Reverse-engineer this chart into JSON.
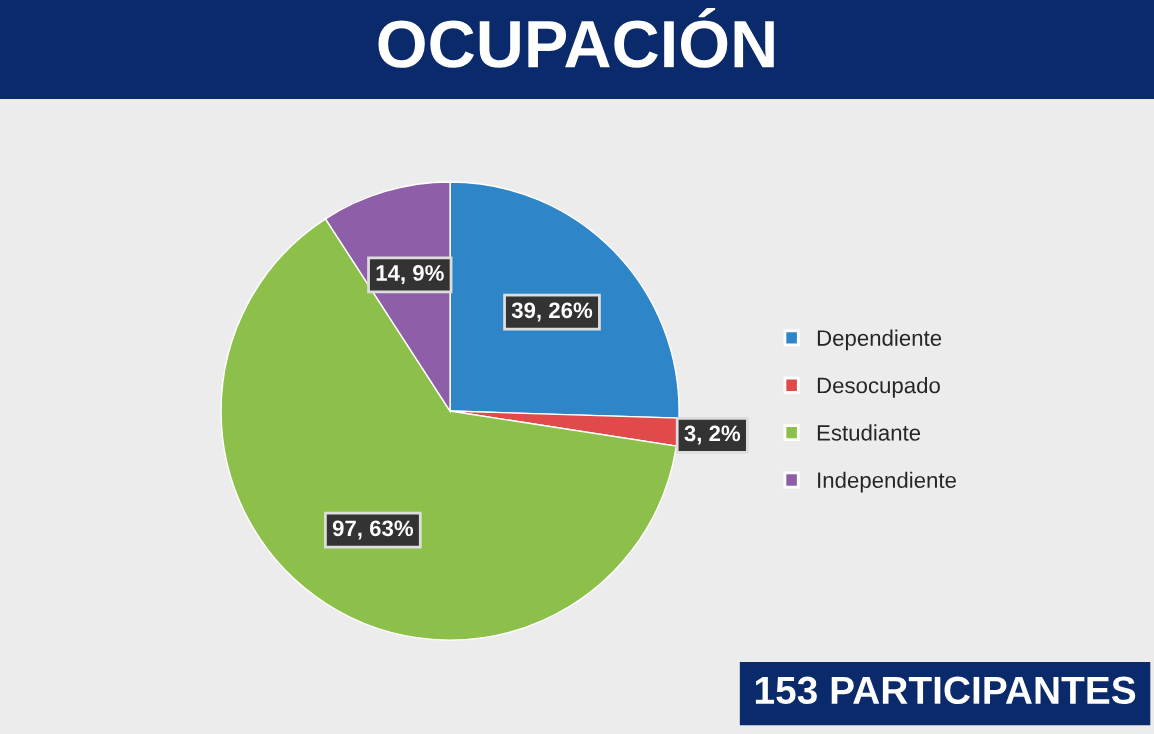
{
  "chart_data": {
    "type": "pie",
    "title": "OCUPACIÓN",
    "categories": [
      "Dependiente",
      "Desocupado",
      "Estudiante",
      "Independiente"
    ],
    "values": [
      39,
      3,
      97,
      14
    ],
    "colors": [
      "#2e86c9",
      "#e04a4a",
      "#8dc04a",
      "#8e5fa8"
    ],
    "value_labels": [
      "39, 26%",
      "3, 2%",
      "97, 63%",
      "14, 9%"
    ],
    "legend": "right",
    "annotations": [
      "153 PARTICIPANTES"
    ]
  }
}
